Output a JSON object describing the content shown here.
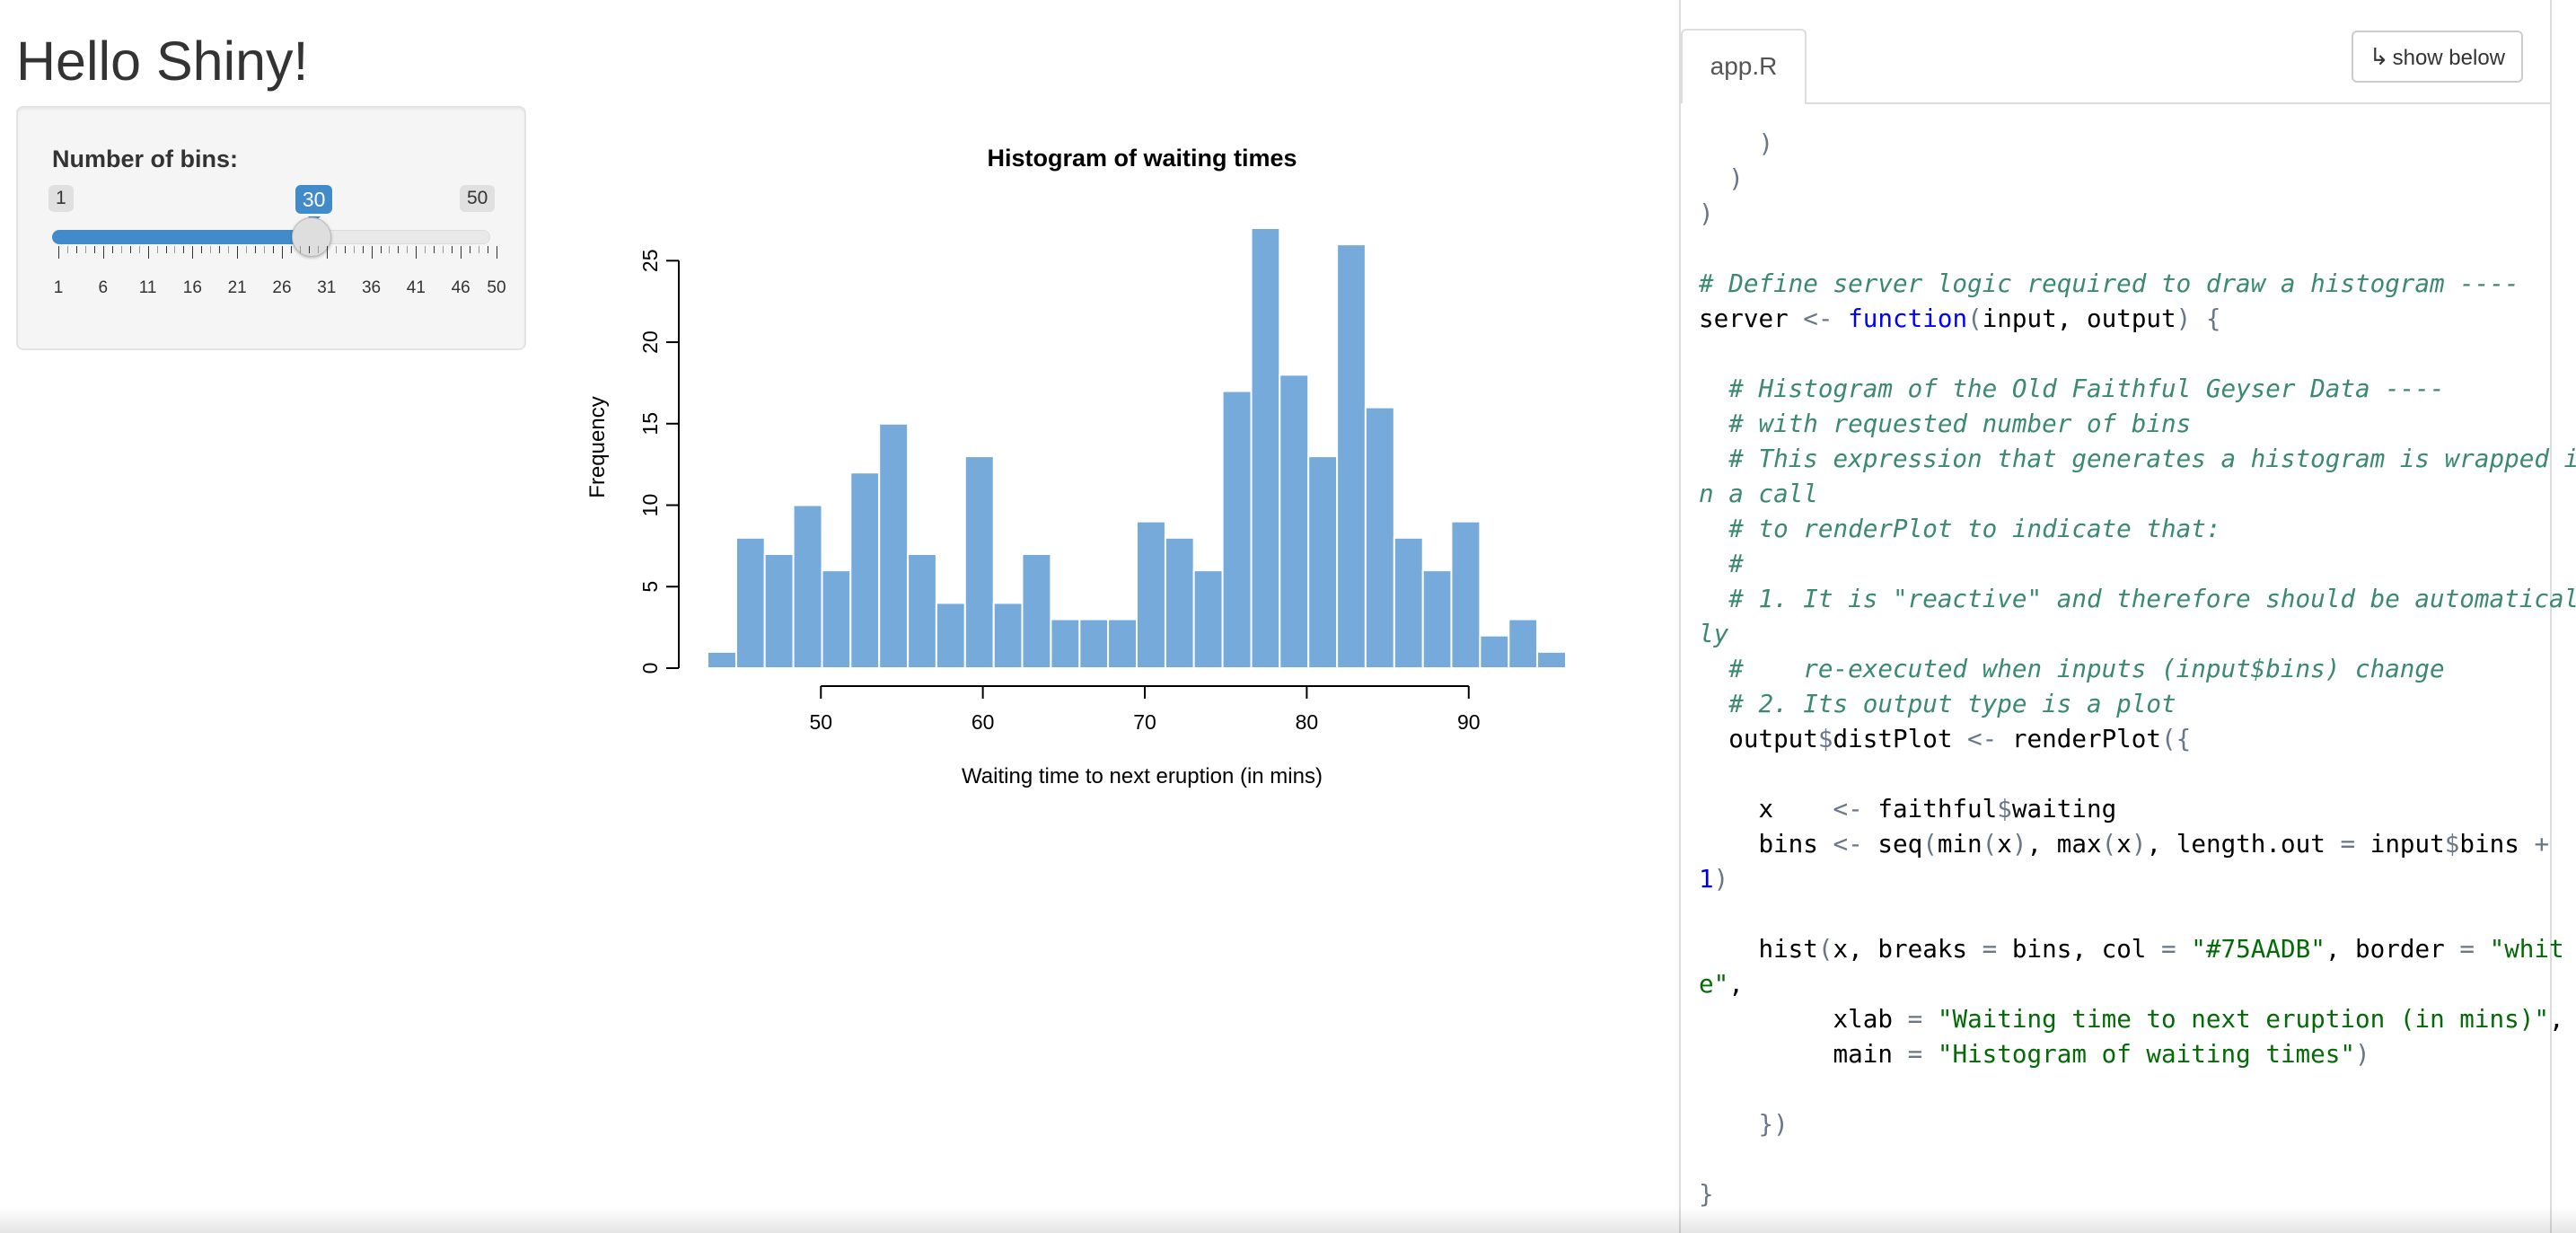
{
  "app": {
    "title": "Hello Shiny!"
  },
  "sidebar": {
    "slider": {
      "label": "Number of bins:",
      "min": 1,
      "max": 50,
      "value": 30,
      "min_label": "1",
      "max_label": "50",
      "value_label": "30",
      "grid_labels": [
        "1",
        "6",
        "11",
        "16",
        "21",
        "26",
        "31",
        "36",
        "41",
        "46",
        "50"
      ],
      "accent_color": "#428bca"
    }
  },
  "chart_data": {
    "type": "bar",
    "title": "Histogram of waiting times",
    "xlabel": "Waiting time to next eruption (in mins)",
    "ylabel": "Frequency",
    "bar_color": "#75AADB",
    "bar_border": "#ffffff",
    "x_ticks": [
      50,
      60,
      70,
      80,
      90
    ],
    "y_ticks": [
      0,
      5,
      10,
      15,
      20,
      25
    ],
    "xlim": [
      43,
      96
    ],
    "ylim": [
      0,
      27
    ],
    "bin_edges": [
      43.0,
      44.77,
      46.53,
      48.3,
      50.07,
      51.83,
      53.6,
      55.37,
      57.13,
      58.9,
      60.67,
      62.43,
      64.2,
      65.97,
      67.73,
      69.5,
      71.27,
      73.03,
      74.8,
      76.57,
      78.33,
      80.1,
      81.87,
      83.63,
      85.4,
      87.17,
      88.93,
      90.7,
      92.47,
      94.23,
      96.0
    ],
    "values": [
      1,
      8,
      7,
      10,
      6,
      12,
      15,
      7,
      4,
      13,
      4,
      7,
      3,
      3,
      3,
      9,
      8,
      6,
      17,
      27,
      18,
      13,
      26,
      16,
      8,
      6,
      9,
      2,
      3,
      1
    ]
  },
  "code_panel": {
    "tab_label": "app.R",
    "show_below_label": "show below",
    "show_below_icon": "arrow-down-turn-icon",
    "lines": [
      "    )",
      "  )",
      ")",
      "",
      "# Define server logic required to draw a histogram ----",
      "server <- function(input, output) {",
      "",
      "  # Histogram of the Old Faithful Geyser Data ----",
      "  # with requested number of bins",
      "  # This expression that generates a histogram is wrapped i",
      "n a call",
      "  # to renderPlot to indicate that:",
      "  #",
      "  # 1. It is \"reactive\" and therefore should be automatical",
      "ly",
      "  #    re-executed when inputs (input$bins) change",
      "  # 2. Its output type is a plot",
      "  output$distPlot <- renderPlot({",
      "",
      "    x    <- faithful$waiting",
      "    bins <- seq(min(x), max(x), length.out = input$bins +",
      "1)",
      "",
      "    hist(x, breaks = bins, col = \"#75AADB\", border = \"whit",
      "e\",",
      "         xlab = \"Waiting time to next eruption (in mins)\",",
      "         main = \"Histogram of waiting times\")",
      "",
      "    })",
      "",
      "}"
    ]
  }
}
